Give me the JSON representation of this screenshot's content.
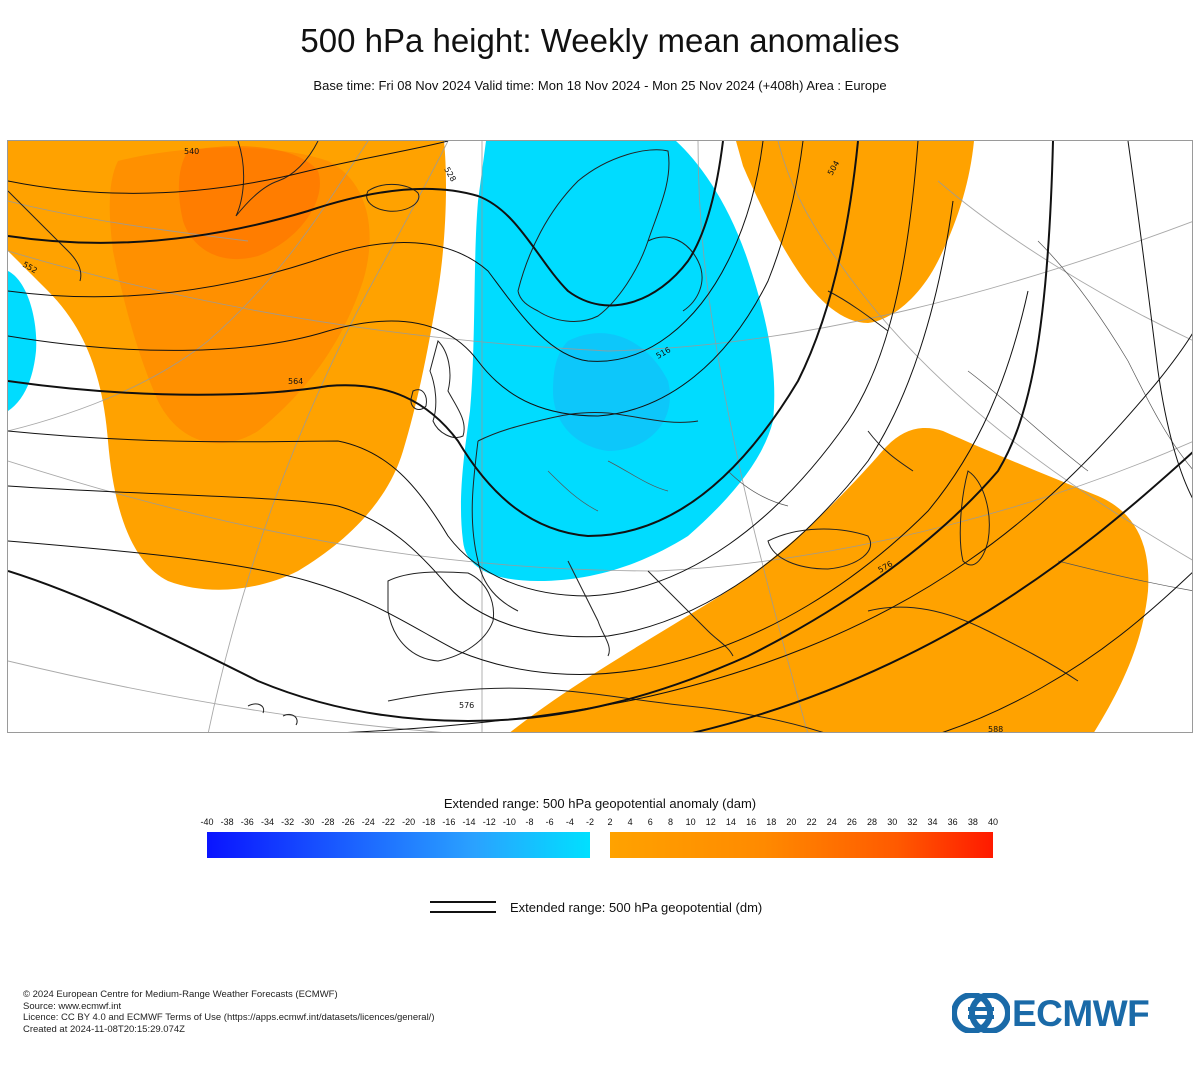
{
  "header": {
    "title": "500 hPa height: Weekly mean anomalies",
    "subtitle": "Base time: Fri 08 Nov 2024 Valid time: Mon 18 Nov 2024 - Mon 25 Nov 2024 (+408h) Area : Europe"
  },
  "map": {
    "region": "Europe",
    "contour_labels": [
      "540",
      "552",
      "564",
      "576",
      "588",
      "528",
      "516",
      "504",
      "576"
    ],
    "colors": {
      "negative_anomaly": "#00dcff",
      "positive_anomaly": "#ffa200",
      "strong_positive_anomaly": "#ff7a00",
      "contour": "#111111",
      "graticule": "#999999"
    }
  },
  "colorbar": {
    "title": "Extended range: 500 hPa geopotential anomaly (dam)",
    "negative_ticks": [
      "-40",
      "-38",
      "-36",
      "-34",
      "-32",
      "-30",
      "-28",
      "-26",
      "-24",
      "-22",
      "-20",
      "-18",
      "-16",
      "-14",
      "-12",
      "-10",
      "-8",
      "-6",
      "-4",
      "-2"
    ],
    "positive_ticks": [
      "2",
      "4",
      "6",
      "8",
      "10",
      "12",
      "14",
      "16",
      "18",
      "20",
      "22",
      "24",
      "26",
      "28",
      "30",
      "32",
      "34",
      "36",
      "38",
      "40"
    ],
    "negative_colors": [
      "#0a14ff",
      "#00e0ff"
    ],
    "positive_colors": [
      "#ffa200",
      "#ff1a00"
    ]
  },
  "legend": {
    "contour_label": "Extended range: 500 hPa geopotential (dm)"
  },
  "footer": {
    "copyright": "© 2024 European Centre for Medium-Range Weather Forecasts (ECMWF)",
    "source": "Source: www.ecmwf.int",
    "licence": "Licence: CC BY 4.0 and ECMWF Terms of Use (https://apps.ecmwf.int/datasets/licences/general/)",
    "created": "Created at 2024-11-08T20:15:29.074Z"
  },
  "logo": {
    "text": "ECMWF",
    "color": "#1a6aa8"
  }
}
